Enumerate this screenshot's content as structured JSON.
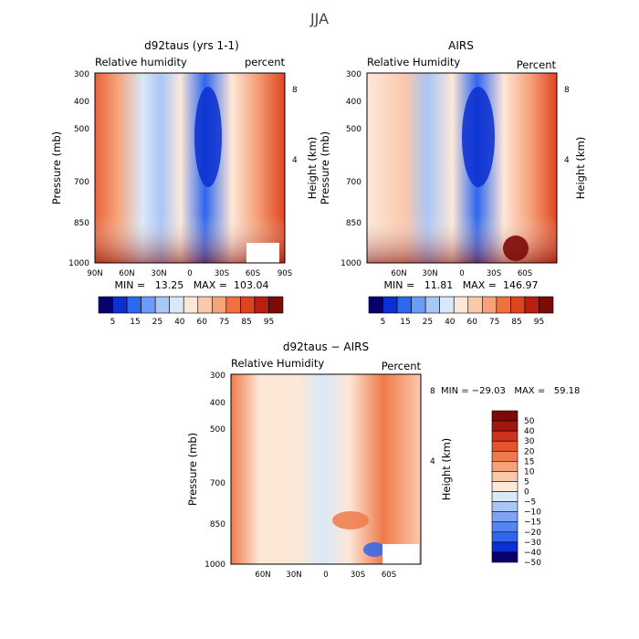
{
  "season_title": "JJA",
  "colors": {
    "rh_scale": [
      "#08006e",
      "#0b2fd0",
      "#2f66ee",
      "#6b9cf5",
      "#a9c6f7",
      "#d9e9f8",
      "#fde8d8",
      "#fbc8ac",
      "#f6a27a",
      "#ef7040",
      "#de4420",
      "#b81e12",
      "#7c0a06"
    ],
    "diff_scale": [
      "#08006e",
      "#0b2fd0",
      "#2f66ee",
      "#5585f2",
      "#7fa3f4",
      "#a9c6f7",
      "#d9e9f8",
      "#fde8d8",
      "#fbc8ac",
      "#f6a27a",
      "#ef7a4a",
      "#e6552a",
      "#cc321c",
      "#a3160e",
      "#7c0a06"
    ]
  },
  "panels": [
    {
      "title": "d92taus (yrs 1-1)",
      "left_label": "Relative humidity",
      "right_label": "percent",
      "ylabel": "Pressure (mb)",
      "ylabel_right": "Height (km)",
      "yticks": [
        "300",
        "400",
        "500",
        "700",
        "850",
        "1000"
      ],
      "height_ticks": [
        "8",
        "4"
      ],
      "xticks": [
        "90N",
        "60N",
        "30N",
        "0",
        "30S",
        "60S",
        "90S"
      ],
      "minmax": "MIN =   13.25   MAX =  103.04",
      "colorbar_labels": [
        "5",
        "15",
        "25",
        "40",
        "60",
        "75",
        "85",
        "95"
      ]
    },
    {
      "title": "AIRS",
      "left_label": "Relative Humidity",
      "right_label": "Percent",
      "ylabel": "Pressure (mb)",
      "ylabel_right": "Height (km)",
      "yticks": [
        "300",
        "400",
        "500",
        "700",
        "850",
        "1000"
      ],
      "height_ticks": [
        "8",
        "4"
      ],
      "xticks": [
        "60N",
        "30N",
        "0",
        "30S",
        "60S"
      ],
      "minmax": "MIN =   11.81   MAX =  146.97",
      "colorbar_labels": [
        "5",
        "15",
        "25",
        "40",
        "60",
        "75",
        "85",
        "95"
      ]
    },
    {
      "title": "d92taus − AIRS",
      "left_label": "Relative Humidity",
      "right_label": "Percent",
      "ylabel": "Pressure (mb)",
      "ylabel_right": "Height (km)",
      "yticks": [
        "300",
        "400",
        "500",
        "700",
        "850",
        "1000"
      ],
      "height_ticks": [
        "8",
        "4"
      ],
      "xticks": [
        "60N",
        "30N",
        "0",
        "30S",
        "60S"
      ],
      "minmax": "MIN = −29.03   MAX =   59.18",
      "colorbar_labels": [
        "50",
        "40",
        "30",
        "20",
        "15",
        "10",
        "5",
        "0",
        "−5",
        "−10",
        "−15",
        "−20",
        "−30",
        "−40",
        "−50"
      ]
    }
  ],
  "chart_data": [
    {
      "type": "heatmap",
      "title": "d92taus (yrs 1-1)",
      "ylabel": "Pressure (mb)",
      "units": "percent",
      "min": 13.25,
      "max": 103.04,
      "y_levels_mb": [
        300,
        400,
        500,
        700,
        850,
        1000
      ],
      "x_lats": [
        "90N",
        "60N",
        "30N",
        "0",
        "30S",
        "60S",
        "90S"
      ]
    },
    {
      "type": "heatmap",
      "title": "AIRS",
      "ylabel": "Pressure (mb)",
      "units": "Percent",
      "min": 11.81,
      "max": 146.97,
      "y_levels_mb": [
        300,
        400,
        500,
        700,
        850,
        1000
      ],
      "x_lats": [
        "60N",
        "30N",
        "0",
        "30S",
        "60S"
      ]
    },
    {
      "type": "heatmap",
      "title": "d92taus − AIRS",
      "ylabel": "Pressure (mb)",
      "units": "Percent",
      "min": -29.03,
      "max": 59.18,
      "y_levels_mb": [
        300,
        400,
        500,
        700,
        850,
        1000
      ],
      "x_lats": [
        "60N",
        "30N",
        "0",
        "30S",
        "60S"
      ]
    }
  ]
}
